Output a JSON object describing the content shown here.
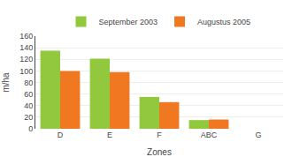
{
  "chart_data": {
    "type": "bar",
    "categories": [
      "D",
      "E",
      "F",
      "ABC",
      "G"
    ],
    "series": [
      {
        "name": "September 2003",
        "color": "#92c83e",
        "values": [
          135,
          121,
          55,
          15,
          0
        ]
      },
      {
        "name": "Augustus 2005",
        "color": "#f07820",
        "values": [
          100,
          98,
          46,
          16,
          0
        ]
      }
    ],
    "xlabel": "Zones",
    "ylabel": "m/ha",
    "ylim": [
      0,
      160
    ],
    "yticks": [
      0,
      20,
      40,
      60,
      80,
      100,
      120,
      140,
      160
    ],
    "grid": true,
    "legend": "top"
  }
}
